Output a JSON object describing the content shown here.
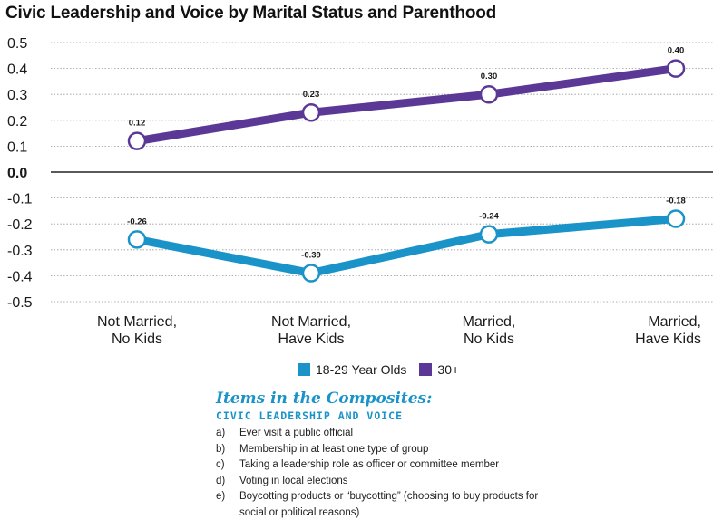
{
  "chart_data": {
    "type": "line",
    "title": "Civic Leadership and Voice by Marital Status and Parenthood",
    "categories": [
      "Not Married,\nNo Kids",
      "Not Married,\nHave Kids",
      "Married,\nNo Kids",
      "Married,\nHave Kids"
    ],
    "series": [
      {
        "name": "18-29 Year Olds",
        "values": [
          -0.26,
          -0.39,
          -0.24,
          -0.18
        ],
        "labels": [
          "-0.26",
          "-0.39",
          "-0.24",
          "-0.18"
        ],
        "color": "#1a93c8"
      },
      {
        "name": "30+",
        "values": [
          0.12,
          0.23,
          0.3,
          0.4
        ],
        "labels": [
          "0.12",
          "0.23",
          "0.30",
          "0.40"
        ],
        "color": "#5b3896"
      }
    ],
    "yticks": [
      "0.5",
      "0.4",
      "0.3",
      "0.2",
      "0.1",
      "0.0",
      "-0.1",
      "-0.2",
      "-0.3",
      "-0.4",
      "-0.5"
    ],
    "ylim": [
      -0.5,
      0.5
    ],
    "grid": true,
    "legend_position": "bottom"
  },
  "composites": {
    "title": "Items in the Composites:",
    "subtitle": "CIVIC LEADERSHIP AND VOICE",
    "items": [
      {
        "letter": "a)",
        "text": "Ever visit a public official"
      },
      {
        "letter": "b)",
        "text": "Membership in at least one type of group"
      },
      {
        "letter": "c)",
        "text": "Taking a leadership role as officer or committee member"
      },
      {
        "letter": "d)",
        "text": "Voting in local elections"
      },
      {
        "letter": "e)",
        "text": "Boycotting products or “buycotting” (choosing to buy products for social or political reasons)"
      }
    ]
  }
}
